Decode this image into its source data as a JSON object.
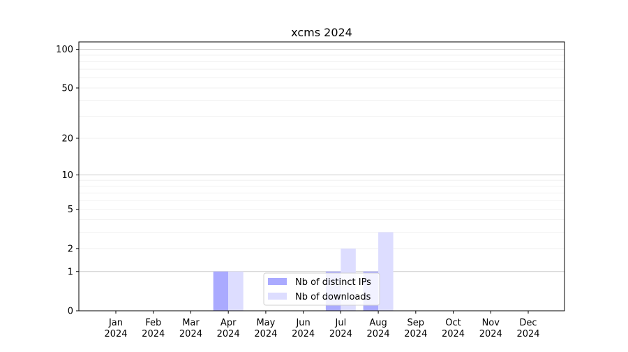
{
  "chart_data": {
    "type": "bar",
    "title": "xcms 2024",
    "xlabel": "",
    "ylabel": "",
    "y_scale": "log(1+x)",
    "ylim": [
      0,
      114
    ],
    "yticks": [
      0,
      1,
      2,
      5,
      10,
      20,
      50,
      100
    ],
    "grid": true,
    "legend_position": "bottom-center",
    "categories": [
      "Jan\n2024",
      "Feb\n2024",
      "Mar\n2024",
      "Apr\n2024",
      "May\n2024",
      "Jun\n2024",
      "Jul\n2024",
      "Aug\n2024",
      "Sep\n2024",
      "Oct\n2024",
      "Nov\n2024",
      "Dec\n2024"
    ],
    "category_labels": [
      [
        "Jan",
        "2024"
      ],
      [
        "Feb",
        "2024"
      ],
      [
        "Mar",
        "2024"
      ],
      [
        "Apr",
        "2024"
      ],
      [
        "May",
        "2024"
      ],
      [
        "Jun",
        "2024"
      ],
      [
        "Jul",
        "2024"
      ],
      [
        "Aug",
        "2024"
      ],
      [
        "Sep",
        "2024"
      ],
      [
        "Oct",
        "2024"
      ],
      [
        "Nov",
        "2024"
      ],
      [
        "Dec",
        "2024"
      ]
    ],
    "series": [
      {
        "name": "Nb of distinct IPs",
        "color": "#aaaaff",
        "values": [
          0,
          0,
          0,
          1,
          0,
          0,
          1,
          1,
          0,
          0,
          0,
          0
        ]
      },
      {
        "name": "Nb of downloads",
        "color": "#ddddff",
        "values": [
          0,
          0,
          0,
          1,
          0,
          0,
          2,
          3,
          0,
          0,
          0,
          0
        ]
      }
    ]
  }
}
